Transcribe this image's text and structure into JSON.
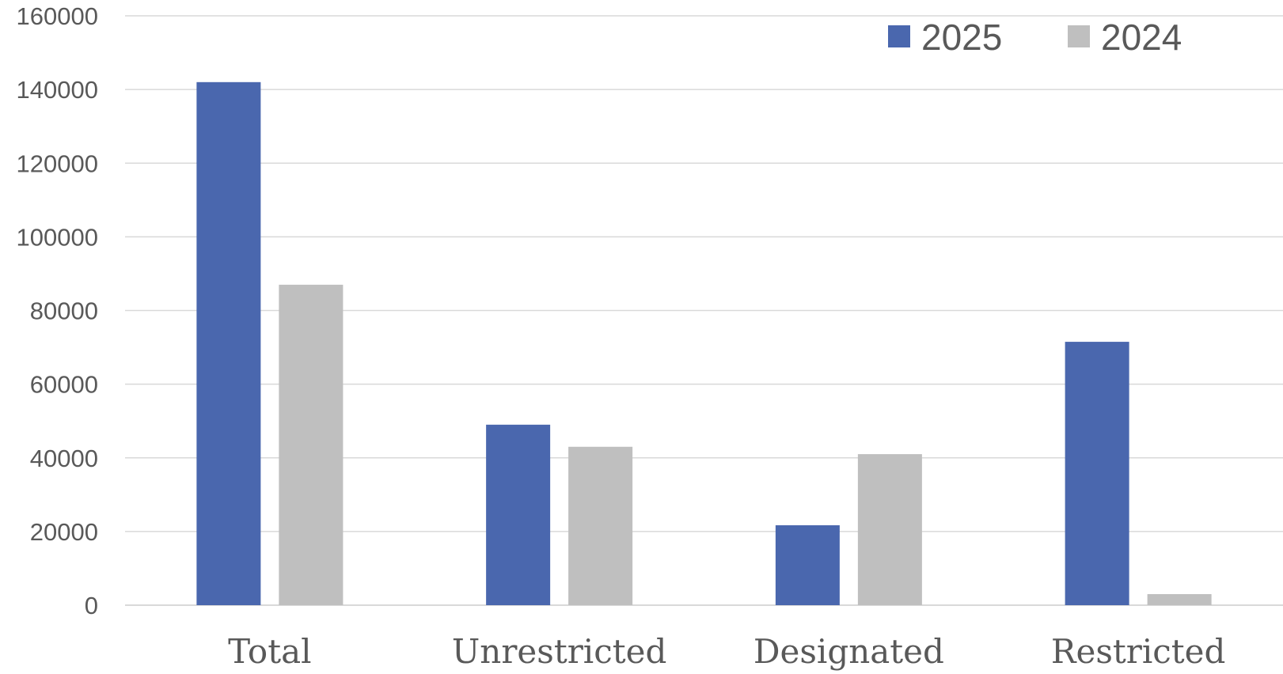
{
  "chart_data": {
    "type": "bar",
    "categories": [
      "Total",
      "Unrestricted",
      "Designated",
      "Restricted"
    ],
    "series": [
      {
        "name": "2025",
        "color": "#4a67ae",
        "values": [
          142000,
          49000,
          21700,
          71500
        ]
      },
      {
        "name": "2024",
        "color": "#bfbfbf",
        "values": [
          87000,
          43000,
          41000,
          3000
        ]
      }
    ],
    "yticks": [
      "0",
      "20000",
      "40000",
      "60000",
      "80000",
      "100000",
      "120000",
      "140000",
      "160000"
    ],
    "ylim": [
      0,
      160000
    ],
    "grid": true,
    "legend_position": "top-right"
  }
}
